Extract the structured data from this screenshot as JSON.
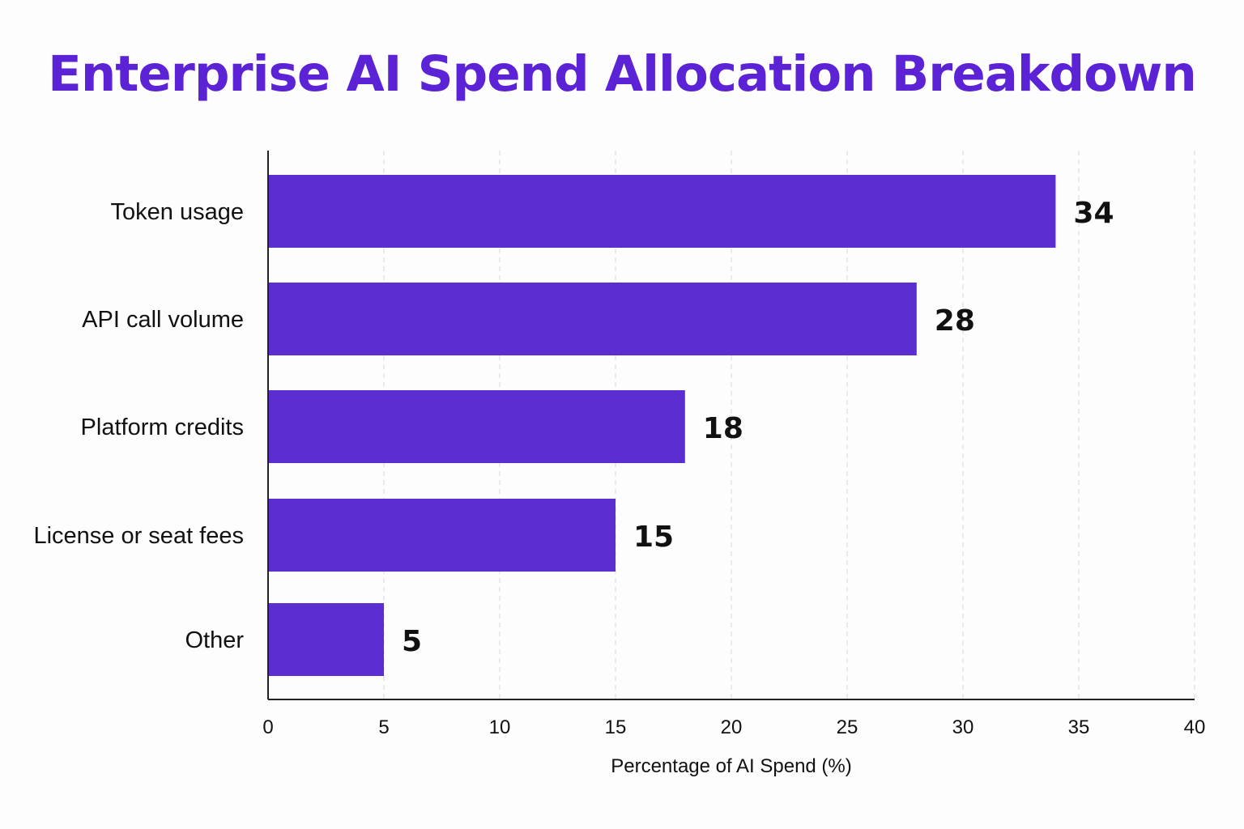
{
  "chart_data": {
    "type": "bar",
    "orientation": "horizontal",
    "title": "Enterprise AI Spend Allocation Breakdown",
    "categories": [
      "Token usage",
      "API call volume",
      "Platform credits",
      "License or seat fees",
      "Other"
    ],
    "values": [
      34,
      28,
      18,
      15,
      5
    ],
    "value_labels": [
      "34",
      "28",
      "18",
      "15",
      "5"
    ],
    "xlabel": "Percentage of AI Spend (%)",
    "ylabel": "",
    "xlim": [
      0,
      40
    ],
    "xticks": [
      "0",
      "5",
      "10",
      "15",
      "20",
      "25",
      "30",
      "35",
      "40"
    ],
    "grid": "vertical-dashed",
    "legend": "none",
    "colors": {
      "bar": "#5c2dd0",
      "title": "#5b22d6",
      "grid": "#d8d8d8",
      "axis": "#222222",
      "text": "#111111"
    }
  }
}
